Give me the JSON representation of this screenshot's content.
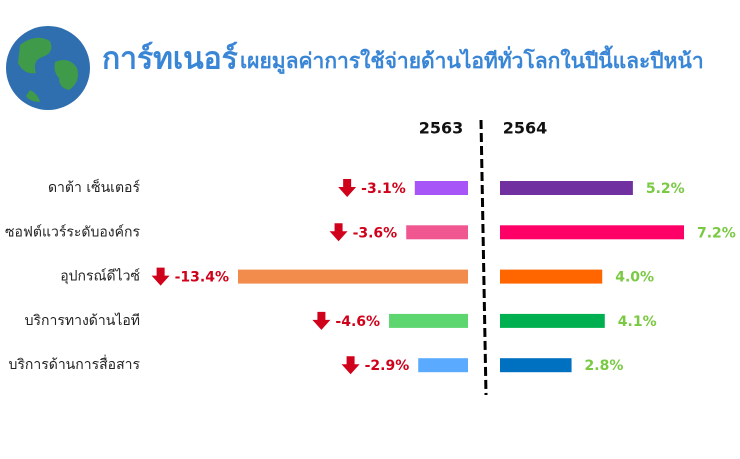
{
  "chart_data": {
    "type": "diverging-bar",
    "title": "การ์ทเนอร์",
    "subtitle": "เผยมูลค่าการใช้จ่ายด้านไอทีทั่วโลกในปีนี้และปีหน้า",
    "categories": [
      "ดาต้า เซ็นเตอร์",
      "ซอฟต์แวร์ระดับองค์กร",
      "อุปกรณ์ดีไวซ์",
      "บริการทางด้านไอที",
      "บริการด้านการสื่อสาร"
    ],
    "series": [
      {
        "name": "2563",
        "values": [
          -3.1,
          -3.6,
          -13.4,
          -4.6,
          -2.9
        ],
        "value_labels": [
          "-3.1%",
          "-3.6%",
          "-13.4%",
          "-4.6%",
          "-2.9%"
        ],
        "colors": [
          "#a855f7",
          "#f0568f",
          "#f28c4c",
          "#5dd66f",
          "#5aabff"
        ],
        "label_color": "#d0021b",
        "xlim": [
          -13.4,
          0
        ]
      },
      {
        "name": "2564",
        "values": [
          5.2,
          7.2,
          4.0,
          4.1,
          2.8
        ],
        "value_labels": [
          "5.2%",
          "7.2%",
          "4.0%",
          "4.1%",
          "2.8%"
        ],
        "colors": [
          "#7030a0",
          "#ff0066",
          "#ff6600",
          "#00b050",
          "#0070c0"
        ],
        "label_color": "#7ac943",
        "xlim": [
          0,
          7.2
        ]
      }
    ]
  }
}
